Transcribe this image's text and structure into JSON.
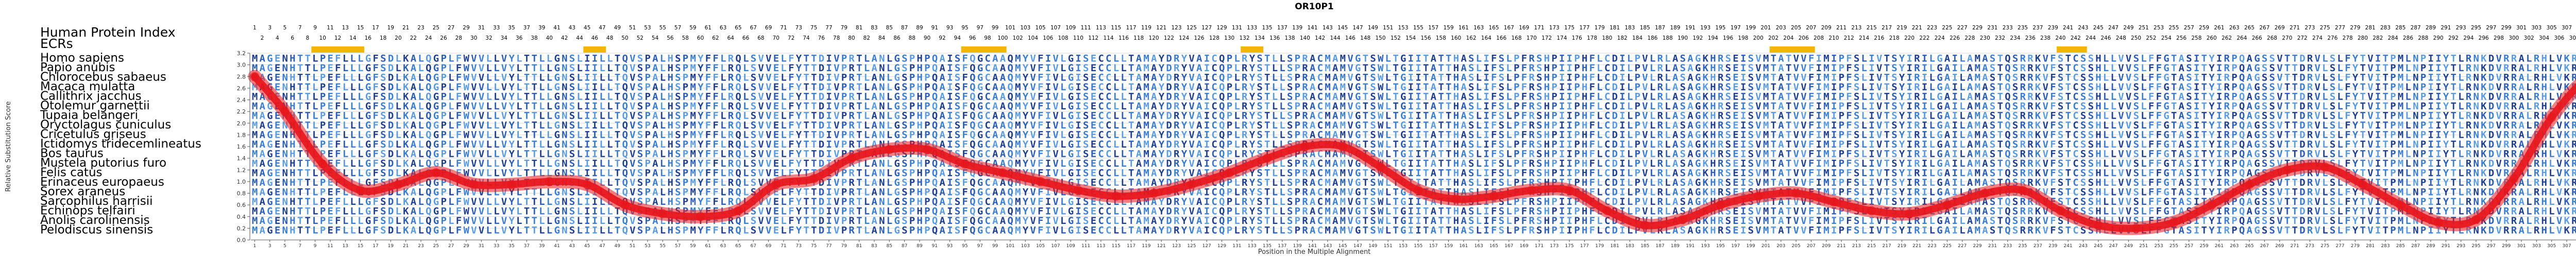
{
  "chart_data": {
    "type": "line",
    "title": "OR10P1",
    "index_label": "Human Protein Index",
    "ecr_label": "ECRs",
    "xlabel": "Position in the Multiple Alignment",
    "ylabel": "Relative Substitution Score",
    "ylim": [
      0,
      3.2
    ],
    "yticks": [
      0.0,
      0.2,
      0.4,
      0.6,
      0.8,
      1.0,
      1.2,
      1.4,
      1.6,
      1.8,
      2.0,
      2.2,
      2.4,
      2.6,
      2.8,
      3.0,
      3.2
    ],
    "alignment_length": 314,
    "human_index_max": 311,
    "species": [
      "Homo sapiens",
      "Papio anubis",
      "Chlorocebus sabaeus",
      "Macaca mulatta",
      "Callithrix jacchus",
      "Otolemur garnettii",
      "Tupaia belangeri",
      "Oryctolagus cuniculus",
      "Cricetulus griseus",
      "Ictidomys tridecemlineatus",
      "Bos taurus",
      "Mustela putorius furo",
      "Felis catus",
      "Erinaceus europaeus",
      "Sorex araneus",
      "Sarcophilus harrisii",
      "Echinops telfairi",
      "Anolis carolinensis",
      "Pelodiscus sinensis"
    ],
    "ecr_regions": [
      [
        9,
        15
      ],
      [
        45,
        47
      ],
      [
        95,
        100
      ],
      [
        132,
        134
      ],
      [
        202,
        207
      ],
      [
        240,
        243
      ]
    ],
    "alignment_rows": [
      "MAGENHTTLPEFLLLGFSDLKALQGPLFWVVLLVYLTTLLGNSLIILLTQVSPALHSPMYFFLRQLSVVELFYTTDIVPRTLANLGSPHPQAISFQGCAAQMYVFIVLGISECCLLTAMAYDRYVAICQPLRYSTLLSPRACMAMVGTSWLTGIITATTHASLIFSLPFRSHPIIPHFLCDILPVLRLASAGKHRSEISVMTATVVFIMIPFSLIVTSYIRILGAILAMASTQSRRKVFSTCSSHLLVVSLFFGTASITYIRPQAGSSVTTDRVLSLFYTVITPMLNPIIYTLRNKDVRRALRHLVKRQRPSP",
      "MAGENHTTLPEFLLLGFSDLKALQGPLFWVVLLVYLTTLLGNSLIILLTQVSPALHSPMYFFLRQLSVVELFYTTDIVPRTLANLGSPHPQAISFQGCAAQMYVFIVLGISECCLLTAMAYDRYVAICQPLRYSTLLSPRACMAMVGTSWLTGIITATTHASLIFSLPFRSHPIIPHFLCDILPVLRLASAGKHRSEISVMTATVVFIMIPFSLIVTSYIRILGAILAMASTQSRRKVFSTCSSHLLVVSLFFGTASITYIRPQAGSSVTTDRVLSLFYTVITPMLNPIIYTLRNKDVRRALRHLVKRQRPSP",
      "MAGENHTTLPEFLLLGFSDLKALQGPLFWVVLLVYLTTLLGNSLIILLTQVSPALHSPMYFFLRQLSVVELFYTTDIVPRTLANLGSPHPQAISFQGCAAQMYVFIVLGISECCLLTAMAYDRYVAICQPLRYSTLLSPRACMAMVGTSWLTGIITATTHASLIFSLPFRSHPIIPHFLCDILPVLRLASAGKHRSEISVMTATVVFIMIPFSLIVTSYIRILGAILAMASTQSRRKVFSTCSSHLLVVSLFFGTASITYIRPQAGSSVTTDRVLSLFYTVITPMLNPIIYTLRNKDVRRALRHLVKRQRPSP",
      "MAGENHTTLPEFLLLGFSDLKALQGPLFWVVLLVYLTTLLGNSLIILLTQVSPALHSPMYFFLRQLSVVELFYTTDIVPRTLANLGSPHPQAISFQGCAAQMYVFIVLGISECCLLTAMAYDRYVAICQPLRYSTLLSPRACMAMVGTSWLTGIITATTHASLIFSLPFRSHPIIPHFLCDILPVLRLASAGKHRSEISVMTATVVFIMIPFSLIVTSYIRILGAILAMASTQSRRKVFSTCSSHLLVVSLFFGTASITYIRPQAGSSVTTDRVLSLFYTVITPMLNPIIYTLRNKDVRRALRHLVKRQRPSP",
      "MAGENHTTLPEFLLLGFSDLKALQGPLFWVVLLVYLTTLLGNSLIILLTQVSPALHSPMYFFLRQLSVVELFYTTDIVPRTLANLGSPHPQAISFQGCAAQMYVFIVLGISECCLLTAMAYDRYVAICQPLRYSTLLSPRACMAMVGTSWLTGIITATTHASLIFSLPFRSHPIIPHFLCDILPVLRLASAGKHRSEISVMTATVVFIMIPFSLIVTSYIRILGAILAMASTQSRRKVFSTCSSHLLVVSLFFGTASITYIRPQAGSSVTTDRVLSLFYTVITPMLNPIIYTLRNKDVRRALRHLVKRQRPSP",
      "MAGENHTTLPEFLLLGFSDLKALQGPLFWVVLLVYLTTLLGNSLIILLTQVSPALHSPMYFFLRQLSVVELFYTTDIVPRTLANLGSPHPQAISFQGCAAQMYVFIVLGISECCLLTAMAYDRYVAICQPLRYSTLLSPRACMAMVGTSWLTGIITATTHASLIFSLPFRSHPIIPHFLCDILPVLRLASAGKHRSEISVMTATVVFIMIPFSLIVTSYIRILGAILAMASTQSRRKVFSTCSSHLLVVSLFFGTASITYIRPQAGSSVTTDRVLSLFYTVITPMLNPIIYTLRNKDVRRALRHLVKRQRPSP",
      "MAGENHTTLPEFLLLGFSDLKALQGPLFWVVLLVYLTTLLGNSLIILLTQVSPALHSPMYFFLRQLSVVELFYTTDIVPRTLANLGSPHPQAISFQGCAAQMYVFIVLGISECCLLTAMAYDRYVAICQPLRYSTLLSPRACMAMVGTSWLTGIITATTHASLIFSLPFRSHPIIPHFLCDILPVLRLASAGKHRSEISVMTATVVFIMIPFSLIVTSYIRILGAILAMASTQSRRKVFSTCSSHLLVVSLFFGTASITYIRPQAGSSVTTDRVLSLFYTVITPMLNPIIYTLRNKDVRRALRHLVKRQRPSP",
      "MAGENHTTLPEFLLLGFSDLKALQGPLFWVVLLVYLTTLLGNSLIILLTQVSPALHSPMYFFLRQLSVVELFYTTDIVPRTLANLGSPHPQAISFQGCAAQMYVFIVLGISECCLLTAMAYDRYVAICQPLRYSTLLSPRACMAMVGTSWLTGIITATTHASLIFSLPFRSHPIIPHFLCDILPVLRLASAGKHRSEISVMTATVVFIMIPFSLIVTSYIRILGAILAMASTQSRRKVFSTCSSHLLVVSLFFGTASITYIRPQAGSSVTTDRVLSLFYTVITPMLNPIIYTLRNKDVRRALRHLVKRQRPSP",
      "MAGENHTTLPEFLLLGFSDLKALQGPLFWVVLLVYLTTLLGNSLIILLTQVSPALHSPMYFFLRQLSVVELFYTTDIVPRTLANLGSPHPQAISFQGCAAQMYVFIVLGISECCLLTAMAYDRYVAICQPLRYSTLLSPRACMAMVGTSWLTGIITATTHASLIFSLPFRSHPIIPHFLCDILPVLRLASAGKHRSEISVMTATVVFIMIPFSLIVTSYIRILGAILAMASTQSRRKVFSTCSSHLLVVSLFFGTASITYIRPQAGSSVTTDRVLSLFYTVITPMLNPIIYTLRNKDVRRALRHLVKRQRPSP",
      "MAGENHTTLPEFLLLGFSDLKALQGPLFWVVLLVYLTTLLGNSLIILLTQVSPALHSPMYFFLRQLSVVELFYTTDIVPRTLANLGSPHPQAISFQGCAAQMYVFIVLGISECCLLTAMAYDRYVAICQPLRYSTLLSPRACMAMVGTSWLTGIITATTHASLIFSLPFRSHPIIPHFLCDILPVLRLASAGKHRSEISVMTATVVFIMIPFSLIVTSYIRILGAILAMASTQSRRKVFSTCSSHLLVVSLFFGTASITYIRPQAGSSVTTDRVLSLFYTVITPMLNPIIYTLRNKDVRRALRHLVKRQRPSP",
      "MAGENHTTLPEFLLLGFSDLKALQGPLFWVVLLVYLTTLLGNSLIILLTQVSPALHSPMYFFLRQLSVVELFYTTDIVPRTLANLGSPHPQAISFQGCAAQMYVFIVLGISECCLLTAMAYDRYVAICQPLRYSTLLSPRACMAMVGTSWLTGIITATTHASLIFSLPFRSHPIIPHFLCDILPVLRLASAGKHRSEISVMTATVVFIMIPFSLIVTSYIRILGAILAMASTQSRRKVFSTCSSHLLVVSLFFGTASITYIRPQAGSSVTTDRVLSLFYTVITPMLNPIIYTLRNKDVRRALRHLVKRQRPSP",
      "MAGENHTTLPEFLLLGFSDLKALQGPLFWVVLLVYLTTLLGNSLIILLTQVSPALHSPMYFFLRQLSVVELFYTTDIVPRTLANLGSPHPQAISFQGCAAQMYVFIVLGISECCLLTAMAYDRYVAICQPLRYSTLLSPRACMAMVGTSWLTGIITATTHASLIFSLPFRSHPIIPHFLCDILPVLRLASAGKHRSEISVMTATVVFIMIPFSLIVTSYIRILGAILAMASTQSRRKVFSTCSSHLLVVSLFFGTASITYIRPQAGSSVTTDRVLSLFYTVITPMLNPIIYTLRNKDVRRALRHLVKRQRPSP",
      "MAGENHTTLPEFLLLGFSDLKALQGPLFWVVLLVYLTTLLGNSLIILLTQVSPALHSPMYFFLRQLSVVELFYTTDIVPRTLANLGSPHPQAISFQGCAAQMYVFIVLGISECCLLTAMAYDRYVAICQPLRYSTLLSPRACMAMVGTSWLTGIITATTHASLIFSLPFRSHPIIPHFLCDILPVLRLASAGKHRSEISVMTATVVFIMIPFSLIVTSYIRILGAILAMASTQSRRKVFSTCSSHLLVVSLFFGTASITYIRPQAGSSVTTDRVLSLFYTVITPMLNPIIYTLRNKDVRRALRHLVKRQRPSP",
      "MAGENHTTLPEFLLLGFSDLKALQGPLFWVVLLVYLTTLLGNSLIILLTQVSPALHSPMYFFLRQLSVVELFYTTDIVPRTLANLGSPHPQAISFQGCAAQMYVFIVLGISECCLLTAMAYDRYVAICQPLRYSTLLSPRACMAMVGTSWLTGIITATTHASLIFSLPFRSHPIIPHFLCDILPVLRLASAGKHRSEISVMTATVVFIMIPFSLIVTSYIRILGAILAMASTQSRRKVFSTCSSHLLVVSLFFGTASITYIRPQAGSSVTTDRVLSLFYTVITPMLNPIIYTLRNKDVRRALRHLVKRQRPSP",
      "MAGENHTTLPEFLLLGFSDLKALQGPLFWVVLLVYLTTLLGNSLIILLTQVSPALHSPMYFFLRQLSVVELFYTTDIVPRTLANLGSPHPQAISFQGCAAQMYVFIVLGISECCLLTAMAYDRYVAICQPLRYSTLLSPRACMAMVGTSWLTGIITATTHASLIFSLPFRSHPIIPHFLCDILPVLRLASAGKHRSEISVMTATVVFIMIPFSLIVTSYIRILGAILAMASTQSRRKVFSTCSSHLLVVSLFFGTASITYIRPQAGSSVTTDRVLSLFYTVITPMLNPIIYTLRNKDVRRALRHLVKRQRPSP",
      "MAGENHTTLPEFLLLGFSDLKALQGPLFWVVLLVYLTTLLGNSLIILLTQVSPALHSPMYFFLRQLSVVELFYTTDIVPRTLANLGSPHPQAISFQGCAAQMYVFIVLGISECCLLTAMAYDRYVAICQPLRYSTLLSPRACMAMVGTSWLTGIITATTHASLIFSLPFRSHPIIPHFLCDILPVLRLASAGKHRSEISVMTATVVFIMIPFSLIVTSYIRILGAILAMASTQSRRKVFSTCSSHLLVVSLFFGTASITYIRPQAGSSVTTDRVLSLFYTVITPMLNPIIYTLRNKDVRRALRHLVKRQRPSP",
      "MAGENHTTLPEFLLLGFSDLKALQGPLFWVVLLVYLTTLLGNSLIILLTQVSPALHSPMYFFLRQLSVVELFYTTDIVPRTLANLGSPHPQAISFQGCAAQMYVFIVLGISECCLLTAMAYDRYVAICQPLRYSTLLSPRACMAMVGTSWLTGIITATTHASLIFSLPFRSHPIIPHFLCDILPVLRLASAGKHRSEISVMTATVVFIMIPFSLIVTSYIRILGAILAMASTQSRRKVFSTCSSHLLVVSLFFGTASITYIRPQAGSSVTTDRVLSLFYTVITPMLNPIIYTLRNKDVRRALRHLVKRQRPSP",
      "MAGENHTTLPEFLLLGFSDLKALQGPLFWVVLLVYLTTLLGNSLIILLTQVSPALHSPMYFFLRQLSVVELFYTTDIVPRTLANLGSPHPQAISFQGCAAQMYVFIVLGISECCLLTAMAYDRYVAICQPLRYSTLLSPRACMAMVGTSWLTGIITATTHASLIFSLPFRSHPIIPHFLCDILPVLRLASAGKHRSEISVMTATVVFIMIPFSLIVTSYIRILGAILAMASTQSRRKVFSTCSSHLLVVSLFFGTASITYIRPQAGSSVTTDRVLSLFYTVITPMLNPIIYTLRNKDVRRALRHLVKRQRPSP",
      "MAGENHTTLPEFLLLGFSDLKALQGPLFWVVLLVYLTTLLGNSLIILLTQVSPALHSPMYFFLRQLSVVELFYTTDIVPRTLANLGSPHPQAISFQGCAAQMYVFIVLGISECCLLTAMAYDRYVAICQPLRYSTLLSPRACMAMVGTSWLTGIITATTHASLIFSLPFRSHPIIPHFLCDILPVLRLASAGKHRSEISVMTATVVFIMIPFSLIVTSYIRILGAILAMASTQSRRKVFSTCSSHLLVVSLFFGTASITYIRPQAGSSVTTDRVLSLFYTVITPMLNPIIYTLRNKDVRRALRHLVKRQRPSP"
    ],
    "series": [
      {
        "x": [
          1,
          5,
          10,
          15,
          20,
          25,
          30,
          35,
          40,
          45,
          50,
          55,
          60,
          65,
          70,
          75,
          80,
          85,
          90,
          95,
          100,
          105,
          110,
          115,
          120,
          125,
          130,
          135,
          140,
          145,
          150,
          155,
          160,
          165,
          170,
          175,
          180,
          185,
          190,
          195,
          200,
          205,
          210,
          215,
          220,
          225,
          230,
          235,
          240,
          245,
          250,
          255,
          260,
          265,
          270,
          275,
          280,
          285,
          290,
          295,
          300,
          305,
          310,
          314
        ],
        "values": [
          2.8,
          2.2,
          1.3,
          0.85,
          0.95,
          1.15,
          0.95,
          0.95,
          1.0,
          0.95,
          0.6,
          0.45,
          0.4,
          0.5,
          0.95,
          1.05,
          1.4,
          1.55,
          1.55,
          1.3,
          1.15,
          1.0,
          0.85,
          0.75,
          0.8,
          0.95,
          1.15,
          1.4,
          1.6,
          1.6,
          1.25,
          0.85,
          0.7,
          0.75,
          0.85,
          0.85,
          0.5,
          0.25,
          0.35,
          0.6,
          0.75,
          0.8,
          0.65,
          0.5,
          0.45,
          0.6,
          0.8,
          0.85,
          0.5,
          0.25,
          0.2,
          0.3,
          0.6,
          0.95,
          1.2,
          1.25,
          0.95,
          0.6,
          0.3,
          0.35,
          1.05,
          2.1,
          2.8,
          2.9
        ]
      }
    ]
  },
  "colors": {
    "curve": "#e8151b",
    "ecr": "#f2b705",
    "grid": "#d9d9d9",
    "axis": "#555555"
  }
}
